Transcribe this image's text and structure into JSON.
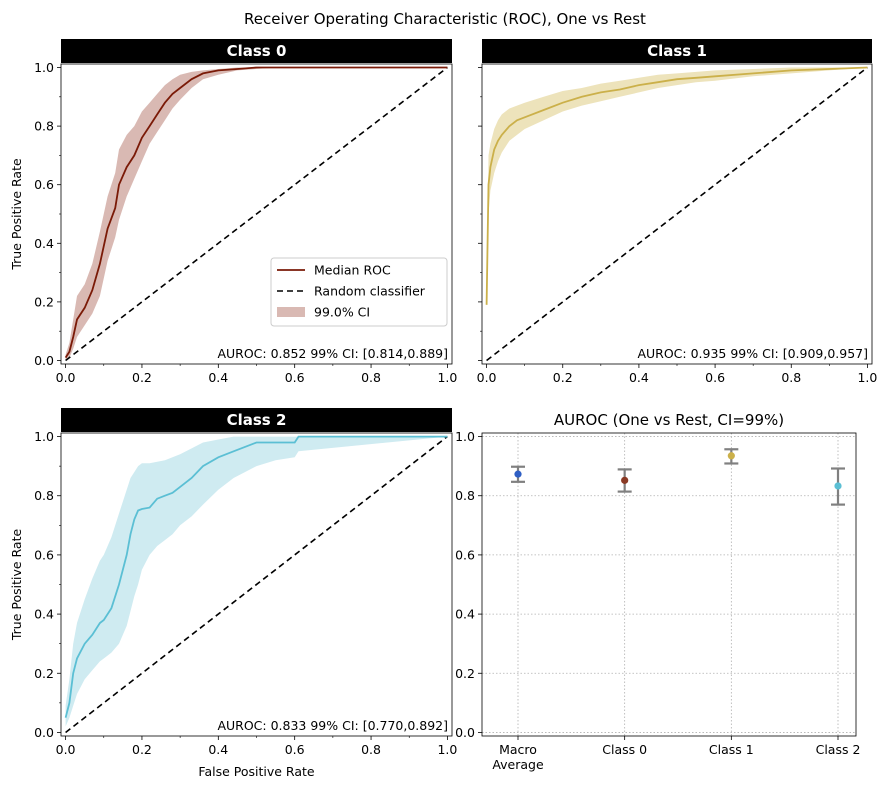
{
  "figure": {
    "title": "Receiver Operating Characteristic (ROC), One vs Rest"
  },
  "chart_data": [
    {
      "type": "line",
      "title": "Class 0",
      "xlabel": "",
      "ylabel": "True Positive Rate",
      "xlim": [
        0,
        1
      ],
      "ylim": [
        0,
        1
      ],
      "xticks": [
        "0.0",
        "0.2",
        "0.4",
        "0.6",
        "0.8",
        "1.0"
      ],
      "yticks": [
        "0.0",
        "0.2",
        "0.4",
        "0.6",
        "0.8",
        "1.0"
      ],
      "color": "#7a1a07",
      "band_color": "#d9b9b3",
      "annotation": "AUROC: 0.852 99% CI: [0.814,0.889]",
      "legend": {
        "placement": "lower-right",
        "entries": [
          "Median ROC",
          "Random classifier",
          "99.0% CI"
        ]
      },
      "series": [
        {
          "name": "Median ROC",
          "x": [
            0,
            0.01,
            0.02,
            0.03,
            0.05,
            0.07,
            0.09,
            0.11,
            0.13,
            0.14,
            0.16,
            0.18,
            0.2,
            0.22,
            0.24,
            0.26,
            0.28,
            0.3,
            0.33,
            0.36,
            0.4,
            0.45,
            0.5,
            0.55,
            0.6,
            1.0
          ],
          "y": [
            0.01,
            0.03,
            0.08,
            0.14,
            0.18,
            0.24,
            0.33,
            0.45,
            0.52,
            0.6,
            0.66,
            0.7,
            0.76,
            0.8,
            0.84,
            0.88,
            0.91,
            0.93,
            0.96,
            0.98,
            0.99,
            0.995,
            1.0,
            1.0,
            1.0,
            1.0
          ]
        },
        {
          "name": "Random classifier",
          "x": [
            0,
            1
          ],
          "y": [
            0,
            1
          ]
        },
        {
          "name": "99.0% CI",
          "x": [
            0,
            0.01,
            0.02,
            0.03,
            0.05,
            0.07,
            0.09,
            0.11,
            0.13,
            0.14,
            0.16,
            0.18,
            0.2,
            0.22,
            0.24,
            0.26,
            0.28,
            0.3,
            0.33,
            0.36,
            0.4,
            0.45,
            0.5,
            0.55,
            0.6,
            1.0
          ],
          "lower": [
            0.0,
            0.01,
            0.04,
            0.08,
            0.12,
            0.16,
            0.22,
            0.34,
            0.42,
            0.48,
            0.56,
            0.62,
            0.68,
            0.74,
            0.78,
            0.82,
            0.86,
            0.89,
            0.93,
            0.96,
            0.975,
            0.99,
            0.995,
            1.0,
            1.0,
            1.0
          ],
          "upper": [
            0.02,
            0.06,
            0.14,
            0.22,
            0.26,
            0.33,
            0.44,
            0.56,
            0.64,
            0.72,
            0.77,
            0.8,
            0.85,
            0.88,
            0.91,
            0.94,
            0.96,
            0.975,
            0.985,
            0.99,
            0.995,
            1.0,
            1.0,
            1.0,
            1.0,
            1.0
          ]
        }
      ]
    },
    {
      "type": "line",
      "title": "Class 1",
      "xlabel": "",
      "ylabel": "",
      "xlim": [
        0,
        1
      ],
      "ylim": [
        0,
        1
      ],
      "xticks": [
        "0.0",
        "0.2",
        "0.4",
        "0.6",
        "0.8",
        "1.0"
      ],
      "yticks": [],
      "color": "#cbb04a",
      "band_color": "#ede3bb",
      "annotation": "AUROC: 0.935 99% CI: [0.909,0.957]",
      "series": [
        {
          "name": "Median ROC",
          "x": [
            0,
            0.005,
            0.01,
            0.02,
            0.03,
            0.04,
            0.06,
            0.08,
            0.1,
            0.15,
            0.2,
            0.25,
            0.3,
            0.35,
            0.4,
            0.45,
            0.5,
            0.55,
            0.6,
            0.7,
            0.8,
            0.9,
            1.0
          ],
          "y": [
            0.19,
            0.6,
            0.66,
            0.72,
            0.75,
            0.77,
            0.8,
            0.82,
            0.83,
            0.855,
            0.88,
            0.9,
            0.915,
            0.925,
            0.94,
            0.95,
            0.96,
            0.965,
            0.97,
            0.98,
            0.99,
            0.995,
            1.0
          ]
        },
        {
          "name": "Random classifier",
          "x": [
            0,
            1
          ],
          "y": [
            0,
            1
          ]
        },
        {
          "name": "99.0% CI",
          "x": [
            0,
            0.005,
            0.01,
            0.02,
            0.03,
            0.04,
            0.06,
            0.08,
            0.1,
            0.15,
            0.2,
            0.25,
            0.3,
            0.35,
            0.4,
            0.45,
            0.5,
            0.55,
            0.6,
            0.7,
            0.8,
            0.9,
            1.0
          ],
          "lower": [
            0.18,
            0.5,
            0.58,
            0.64,
            0.68,
            0.71,
            0.75,
            0.77,
            0.79,
            0.82,
            0.85,
            0.87,
            0.885,
            0.9,
            0.915,
            0.93,
            0.94,
            0.95,
            0.955,
            0.97,
            0.98,
            0.99,
            1.0
          ],
          "upper": [
            0.2,
            0.7,
            0.74,
            0.79,
            0.82,
            0.84,
            0.86,
            0.87,
            0.88,
            0.9,
            0.92,
            0.93,
            0.945,
            0.955,
            0.965,
            0.975,
            0.98,
            0.985,
            0.99,
            0.995,
            1.0,
            1.0,
            1.0
          ]
        }
      ]
    },
    {
      "type": "line",
      "title": "Class 2",
      "xlabel": "False Positive Rate",
      "ylabel": "True Positive Rate",
      "xlim": [
        0,
        1
      ],
      "ylim": [
        0,
        1
      ],
      "xticks": [
        "0.0",
        "0.2",
        "0.4",
        "0.6",
        "0.8",
        "1.0"
      ],
      "yticks": [
        "0.0",
        "0.2",
        "0.4",
        "0.6",
        "0.8",
        "1.0"
      ],
      "color": "#5bbfd4",
      "band_color": "#cfebf1",
      "annotation": "AUROC: 0.833 99% CI: [0.770,0.892]",
      "series": [
        {
          "name": "Median ROC",
          "x": [
            0,
            0.01,
            0.02,
            0.03,
            0.05,
            0.07,
            0.09,
            0.1,
            0.12,
            0.14,
            0.16,
            0.17,
            0.18,
            0.19,
            0.2,
            0.22,
            0.24,
            0.26,
            0.28,
            0.3,
            0.33,
            0.36,
            0.4,
            0.44,
            0.5,
            0.55,
            0.6,
            0.61,
            1.0
          ],
          "y": [
            0.05,
            0.1,
            0.2,
            0.25,
            0.3,
            0.33,
            0.37,
            0.38,
            0.42,
            0.5,
            0.6,
            0.67,
            0.72,
            0.75,
            0.755,
            0.76,
            0.79,
            0.8,
            0.81,
            0.83,
            0.86,
            0.9,
            0.93,
            0.95,
            0.98,
            0.98,
            0.98,
            1.0,
            1.0
          ]
        },
        {
          "name": "Random classifier",
          "x": [
            0,
            1
          ],
          "y": [
            0,
            1
          ]
        },
        {
          "name": "99.0% CI",
          "x": [
            0,
            0.01,
            0.02,
            0.03,
            0.05,
            0.07,
            0.09,
            0.1,
            0.12,
            0.14,
            0.16,
            0.17,
            0.18,
            0.19,
            0.2,
            0.22,
            0.24,
            0.26,
            0.28,
            0.3,
            0.33,
            0.36,
            0.4,
            0.44,
            0.5,
            0.55,
            0.6,
            0.61,
            1.0
          ],
          "lower": [
            0.02,
            0.05,
            0.09,
            0.13,
            0.18,
            0.21,
            0.24,
            0.25,
            0.27,
            0.3,
            0.36,
            0.41,
            0.46,
            0.5,
            0.55,
            0.6,
            0.63,
            0.65,
            0.67,
            0.7,
            0.73,
            0.77,
            0.82,
            0.86,
            0.9,
            0.92,
            0.93,
            0.95,
            1.0
          ],
          "upper": [
            0.09,
            0.18,
            0.3,
            0.37,
            0.45,
            0.52,
            0.58,
            0.6,
            0.66,
            0.74,
            0.82,
            0.86,
            0.88,
            0.9,
            0.91,
            0.91,
            0.915,
            0.92,
            0.93,
            0.94,
            0.96,
            0.98,
            0.99,
            1.0,
            1.0,
            1.0,
            1.0,
            1.0,
            1.0
          ]
        }
      ]
    },
    {
      "type": "scatter",
      "title": "AUROC (One vs Rest, CI=99%)",
      "xlabel": "",
      "ylabel": "",
      "grid": true,
      "ylim": [
        0,
        1
      ],
      "yticks": [
        "0.0",
        "0.2",
        "0.4",
        "0.6",
        "0.8",
        "1.0"
      ],
      "categories": [
        "Macro\nAverage",
        "Class 0",
        "Class 1",
        "Class 2"
      ],
      "values": [
        0.873,
        0.852,
        0.935,
        0.833
      ],
      "ci_lower": [
        0.847,
        0.814,
        0.909,
        0.77
      ],
      "ci_upper": [
        0.898,
        0.889,
        0.957,
        0.892
      ],
      "colors": [
        "#2f5fc4",
        "#8a3a25",
        "#cbb04a",
        "#5bbfd4"
      ],
      "errorbar_color": "#808080"
    }
  ]
}
